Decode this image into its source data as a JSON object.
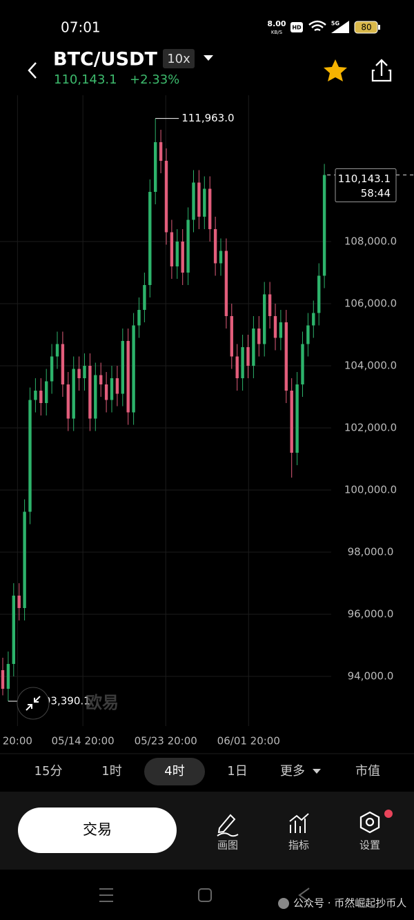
{
  "status_bar": {
    "time": "07:01",
    "speed": "8.00",
    "speed_unit": "KB/S",
    "hd": "HD",
    "network": "5G",
    "battery": "80"
  },
  "header": {
    "pair": "BTC/USDT",
    "leverage": "10x",
    "price": "110,143.1",
    "change": "+2.33%"
  },
  "chart_data": {
    "type": "candlestick",
    "open": [
      94200,
      93600,
      94400,
      96600,
      96200,
      99300,
      102900,
      103200,
      102800,
      103500,
      104300,
      104700,
      103400,
      102300,
      103900,
      103600,
      104000,
      102300,
      103700,
      103400,
      102900,
      103600,
      103100,
      104800,
      102500,
      105300,
      105800,
      106600,
      109600,
      111200,
      110600,
      108300,
      107200,
      108000,
      107000,
      108700,
      109900,
      108800,
      109700,
      108400,
      107300,
      107700,
      105600,
      104300,
      103600,
      104600,
      104000,
      105200,
      104700,
      106300,
      105600,
      104900,
      105400,
      103200,
      101200,
      103400,
      104700,
      105300,
      105700,
      106900
    ],
    "high": [
      94600,
      94800,
      97000,
      97000,
      99700,
      103300,
      103600,
      103600,
      103900,
      104700,
      105100,
      105100,
      103800,
      104300,
      104300,
      104400,
      104400,
      104100,
      104100,
      103800,
      104000,
      104000,
      105200,
      105200,
      105700,
      106200,
      107000,
      110000,
      111963,
      111600,
      111000,
      108700,
      108400,
      108400,
      109100,
      110300,
      110300,
      110100,
      110100,
      108800,
      108100,
      108100,
      106000,
      104700,
      105000,
      105000,
      105600,
      105600,
      106700,
      106700,
      106000,
      105800,
      105800,
      103600,
      103800,
      105100,
      105700,
      106100,
      107300,
      110500
    ],
    "low": [
      93390.1,
      93200,
      94000,
      95800,
      95800,
      98900,
      102500,
      102400,
      102400,
      103100,
      103900,
      103000,
      101900,
      101900,
      103200,
      103200,
      101900,
      101900,
      103000,
      102500,
      102500,
      102700,
      102700,
      102100,
      102100,
      104900,
      105400,
      106200,
      109200,
      110200,
      107900,
      106800,
      106800,
      106600,
      106600,
      108300,
      108400,
      108400,
      108000,
      106900,
      106900,
      105200,
      103900,
      103200,
      103200,
      103600,
      103600,
      104300,
      104300,
      105200,
      104500,
      104500,
      102800,
      100400,
      100800,
      103000,
      104300,
      104900,
      105300,
      106500
    ],
    "close": [
      93600,
      94400,
      96600,
      96200,
      99300,
      102900,
      103200,
      102800,
      103500,
      104300,
      104700,
      103400,
      102300,
      103900,
      103600,
      104000,
      102300,
      103700,
      103400,
      102900,
      103600,
      103100,
      104800,
      102500,
      105300,
      105800,
      106600,
      109600,
      111200,
      110600,
      108300,
      107200,
      108000,
      107000,
      108700,
      109900,
      108800,
      109700,
      108400,
      107300,
      107700,
      105600,
      104300,
      103600,
      104600,
      104000,
      105200,
      104700,
      106300,
      105600,
      104900,
      105400,
      103200,
      101200,
      103400,
      104700,
      105300,
      105700,
      106900,
      110143.1
    ],
    "up_color": "#2db36b",
    "down_color": "#e25d7b",
    "ylim": [
      92400,
      112711
    ],
    "yticks": [
      {
        "value": 94000,
        "label": "94,000.0"
      },
      {
        "value": 96000,
        "label": "96,000.0"
      },
      {
        "value": 98000,
        "label": "98,000.0"
      },
      {
        "value": 100000,
        "label": "100,000.0"
      },
      {
        "value": 102000,
        "label": "102,000.0"
      },
      {
        "value": 104000,
        "label": "104,000.0"
      },
      {
        "value": 106000,
        "label": "106,000.0"
      },
      {
        "value": 108000,
        "label": "108,000.0"
      }
    ],
    "xticks": [
      {
        "value": 2.7,
        "label": "20:00"
      },
      {
        "value": 14.7,
        "label": "05/14 20:00"
      },
      {
        "value": 29.9,
        "label": "05/23 20:00"
      },
      {
        "value": 45.1,
        "label": "06/01 20:00"
      }
    ],
    "grid": true,
    "high_label": "111,963.0",
    "low_label": "93,390.1",
    "last_label": "110,143.1",
    "countdown": "58:44"
  },
  "watermark": "欧易",
  "timeframes": [
    "15分",
    "1时",
    "4时",
    "1日",
    "更多",
    "市值"
  ],
  "selected_timeframe": 2,
  "toolbar": {
    "trade": "交易",
    "draw": "画图",
    "indicators": "指标",
    "settings": "设置"
  },
  "footer": "公众号 · 币然崛起抄币人"
}
